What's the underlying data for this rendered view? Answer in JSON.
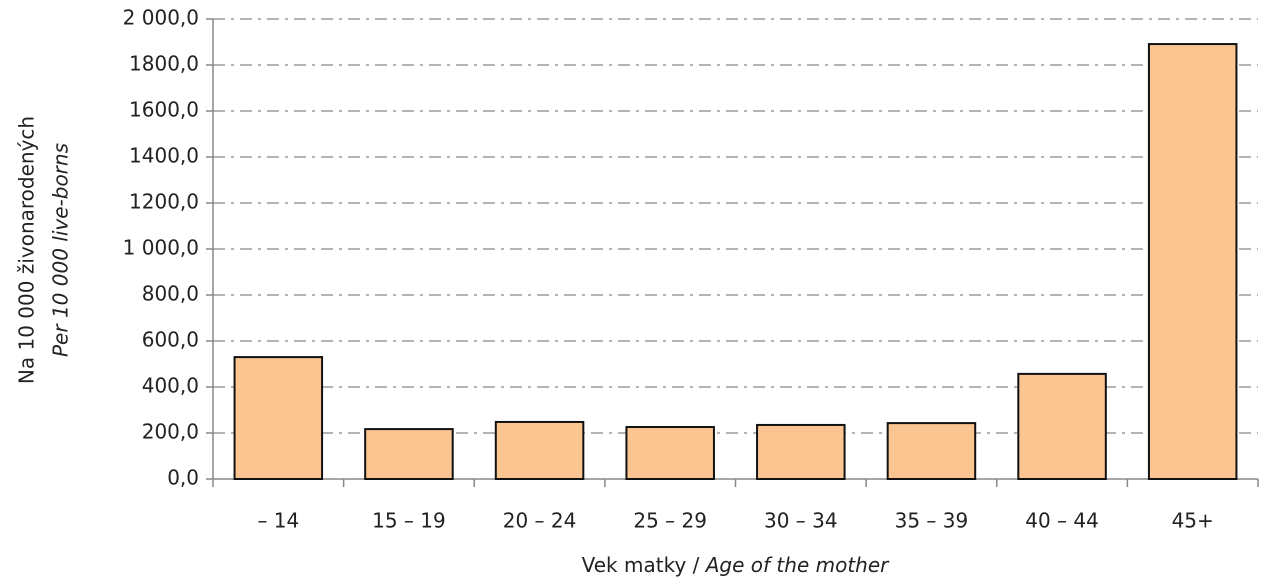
{
  "chart_data": {
    "type": "bar",
    "categories": [
      "– 14",
      "15 – 19",
      "20 – 24",
      "25 – 29",
      "30 – 34",
      "35 – 39",
      "40 – 44",
      "45+"
    ],
    "values": [
      530,
      217,
      248,
      226,
      235,
      243,
      457,
      1891
    ],
    "color": "#fbc592",
    "ylim": [
      0,
      2000
    ],
    "yticks": [
      {
        "value": 0,
        "label": "0,0"
      },
      {
        "value": 200,
        "label": "200,0"
      },
      {
        "value": 400,
        "label": "400,0"
      },
      {
        "value": 600,
        "label": "600,0"
      },
      {
        "value": 800,
        "label": "800,0"
      },
      {
        "value": 1000,
        "label": "1 000,0"
      },
      {
        "value": 1200,
        "label": "1200,0"
      },
      {
        "value": 1400,
        "label": "1400,0"
      },
      {
        "value": 1600,
        "label": "1600,0"
      },
      {
        "value": 1800,
        "label": "1800,0"
      },
      {
        "value": 2000,
        "label": "2 000,0"
      }
    ],
    "grid": true,
    "y_label": [
      "Na 10 000 živonarodených",
      "Per 10 000 live-borns"
    ],
    "x_label": [
      "Vek matky /",
      "Age of the mother"
    ]
  }
}
